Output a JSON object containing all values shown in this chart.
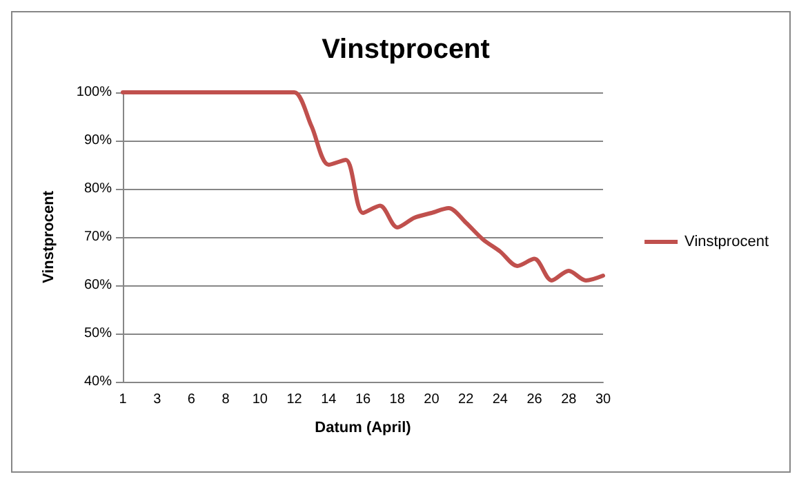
{
  "chart_data": {
    "type": "line",
    "title": "Vinstprocent",
    "xlabel": "Datum (April)",
    "ylabel": "Vinstprocent",
    "categories": [
      "1",
      null,
      "3",
      null,
      "6",
      null,
      "8",
      null,
      "10",
      null,
      "12",
      null,
      "14",
      null,
      "16",
      null,
      "18",
      null,
      "20",
      null,
      "22",
      null,
      "24",
      null,
      "26",
      null,
      "28",
      null,
      "30"
    ],
    "series": [
      {
        "name": "Vinstprocent",
        "color": "#c0504d",
        "values": [
          100,
          100,
          100,
          100,
          100,
          100,
          100,
          100,
          100,
          100,
          100,
          93,
          85,
          86,
          75,
          76.5,
          72,
          74,
          75,
          76,
          73,
          69.5,
          67,
          64,
          65.5,
          61,
          63,
          61,
          62
        ]
      }
    ],
    "ylim": [
      40,
      100
    ],
    "yticks": [
      {
        "value": 40,
        "label": "40%"
      },
      {
        "value": 50,
        "label": "50%"
      },
      {
        "value": 60,
        "label": "60%"
      },
      {
        "value": 70,
        "label": "70%"
      },
      {
        "value": 80,
        "label": "80%"
      },
      {
        "value": 90,
        "label": "90%"
      },
      {
        "value": 100,
        "label": "100%"
      }
    ],
    "grid": "y",
    "legend": "right",
    "marker": "none",
    "line_style": "solid"
  }
}
